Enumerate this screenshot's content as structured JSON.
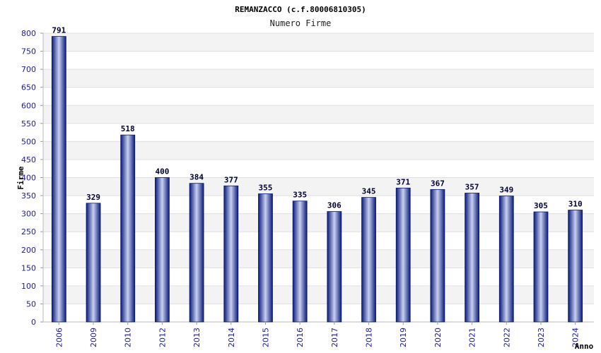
{
  "chart_data": {
    "type": "bar",
    "title": "REMANZACCO (c.f.80006810305)",
    "subtitle": "Numero Firme",
    "xlabel": "Anno",
    "ylabel": "Firme",
    "categories": [
      "2006",
      "2009",
      "2010",
      "2012",
      "2013",
      "2014",
      "2015",
      "2016",
      "2017",
      "2018",
      "2019",
      "2020",
      "2021",
      "2022",
      "2023",
      "2024"
    ],
    "values": [
      791,
      329,
      518,
      400,
      384,
      377,
      355,
      335,
      306,
      345,
      371,
      367,
      357,
      349,
      305,
      310
    ],
    "ylim": [
      0,
      800
    ],
    "yticks": [
      0,
      50,
      100,
      150,
      200,
      250,
      300,
      350,
      400,
      450,
      500,
      550,
      600,
      650,
      700,
      750,
      800
    ],
    "grid": true,
    "legend": "none",
    "colors": {
      "bar_dark": "#0a1a7a",
      "bar_light": "#c8d0f0",
      "band": "#f3f3f3",
      "tick_text": "#1a1aa6"
    }
  }
}
